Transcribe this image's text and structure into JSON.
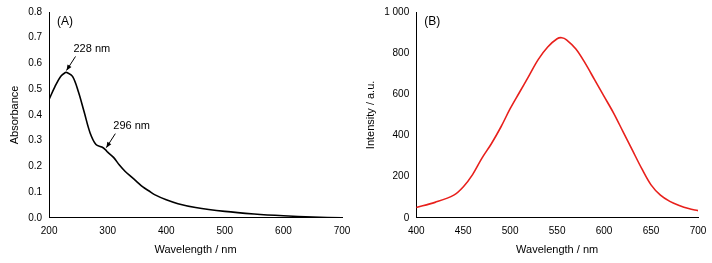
{
  "chart_data": [
    {
      "type": "line",
      "title": "(A)",
      "x_label": "Wavelength / nm",
      "y_label": "Absorbance",
      "x": [
        200,
        210,
        220,
        228,
        230,
        240,
        250,
        260,
        270,
        280,
        290,
        296,
        300,
        310,
        320,
        330,
        340,
        350,
        360,
        370,
        380,
        400,
        420,
        450,
        500,
        550,
        600,
        650,
        700
      ],
      "values": [
        0.46,
        0.51,
        0.55,
        0.565,
        0.565,
        0.55,
        0.49,
        0.41,
        0.33,
        0.285,
        0.275,
        0.265,
        0.255,
        0.235,
        0.205,
        0.18,
        0.16,
        0.14,
        0.12,
        0.105,
        0.09,
        0.07,
        0.055,
        0.04,
        0.025,
        0.015,
        0.008,
        0.003,
        0.0
      ],
      "color": "#000000",
      "xlim": [
        200,
        700
      ],
      "xticks": [
        200,
        300,
        400,
        500,
        600,
        700
      ],
      "ylim": [
        0,
        0.8
      ],
      "yticks": [
        {
          "value": 0,
          "label": "0.0"
        },
        0.1,
        0.2,
        0.3,
        0.4,
        0.5,
        0.6,
        0.7,
        0.8
      ],
      "annotations": [
        {
          "text": "228 nm",
          "x": 228,
          "y": 0.565
        },
        {
          "text": "296 nm",
          "x": 296,
          "y": 0.265
        }
      ],
      "grid": false
    },
    {
      "type": "line",
      "title": "(B)",
      "x_label": "Wavelength / nm",
      "y_label": "Intensity / a.u.",
      "x": [
        400,
        420,
        440,
        450,
        460,
        470,
        480,
        490,
        500,
        510,
        520,
        530,
        540,
        550,
        555,
        560,
        570,
        580,
        590,
        600,
        610,
        620,
        630,
        640,
        650,
        660,
        670,
        680,
        690,
        700
      ],
      "values": [
        50,
        75,
        110,
        150,
        210,
        290,
        360,
        440,
        530,
        610,
        690,
        770,
        830,
        870,
        875,
        865,
        820,
        750,
        670,
        590,
        510,
        420,
        330,
        240,
        160,
        110,
        80,
        60,
        45,
        35
      ],
      "color": "#e8201c",
      "xlim": [
        400,
        700
      ],
      "xticks": [
        400,
        450,
        500,
        550,
        600,
        650,
        700
      ],
      "ylim": [
        0,
        1000
      ],
      "yticks": [
        0,
        200,
        400,
        600,
        800,
        {
          "value": 1000,
          "label": "1 000"
        }
      ],
      "grid": false
    }
  ]
}
